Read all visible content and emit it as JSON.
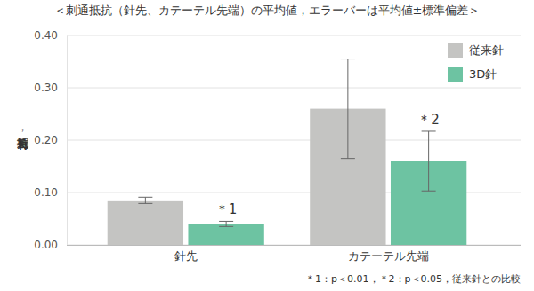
{
  "chart_data": {
    "type": "bar",
    "title": "＜刺通抵抗（針先、カテーテル先端）の平均値，エラーバーは平均値±標準偏差＞",
    "y_label": "刺通抵抗，N",
    "categories": [
      "針先",
      "カテーテル先端"
    ],
    "series": [
      {
        "name": "従来針",
        "color": "#c4c4c2",
        "values": [
          0.085,
          0.26
        ],
        "errors": [
          0.006,
          0.095
        ]
      },
      {
        "name": "3D針",
        "color": "#6dc3a2",
        "values": [
          0.04,
          0.16
        ],
        "errors": [
          0.005,
          0.057
        ]
      }
    ],
    "ylim": [
      0,
      0.4
    ],
    "yticks": [
      {
        "value": 0,
        "label": "0.00"
      },
      {
        "value": 0.1,
        "label": "0.10"
      },
      {
        "value": 0.2,
        "label": "0.20"
      },
      {
        "value": 0.3,
        "label": "0.30"
      },
      {
        "value": 0.4,
        "label": "0.40"
      }
    ],
    "grid": true,
    "legend": "upper right",
    "annotations": [
      {
        "text": "＊1",
        "category": "針先",
        "series": "3D針"
      },
      {
        "text": "＊2",
        "category": "カテーテル先端",
        "series": "3D針"
      }
    ],
    "footnote": "＊1：p＜0.01，＊2：p＜0.05，従来針との比較"
  }
}
